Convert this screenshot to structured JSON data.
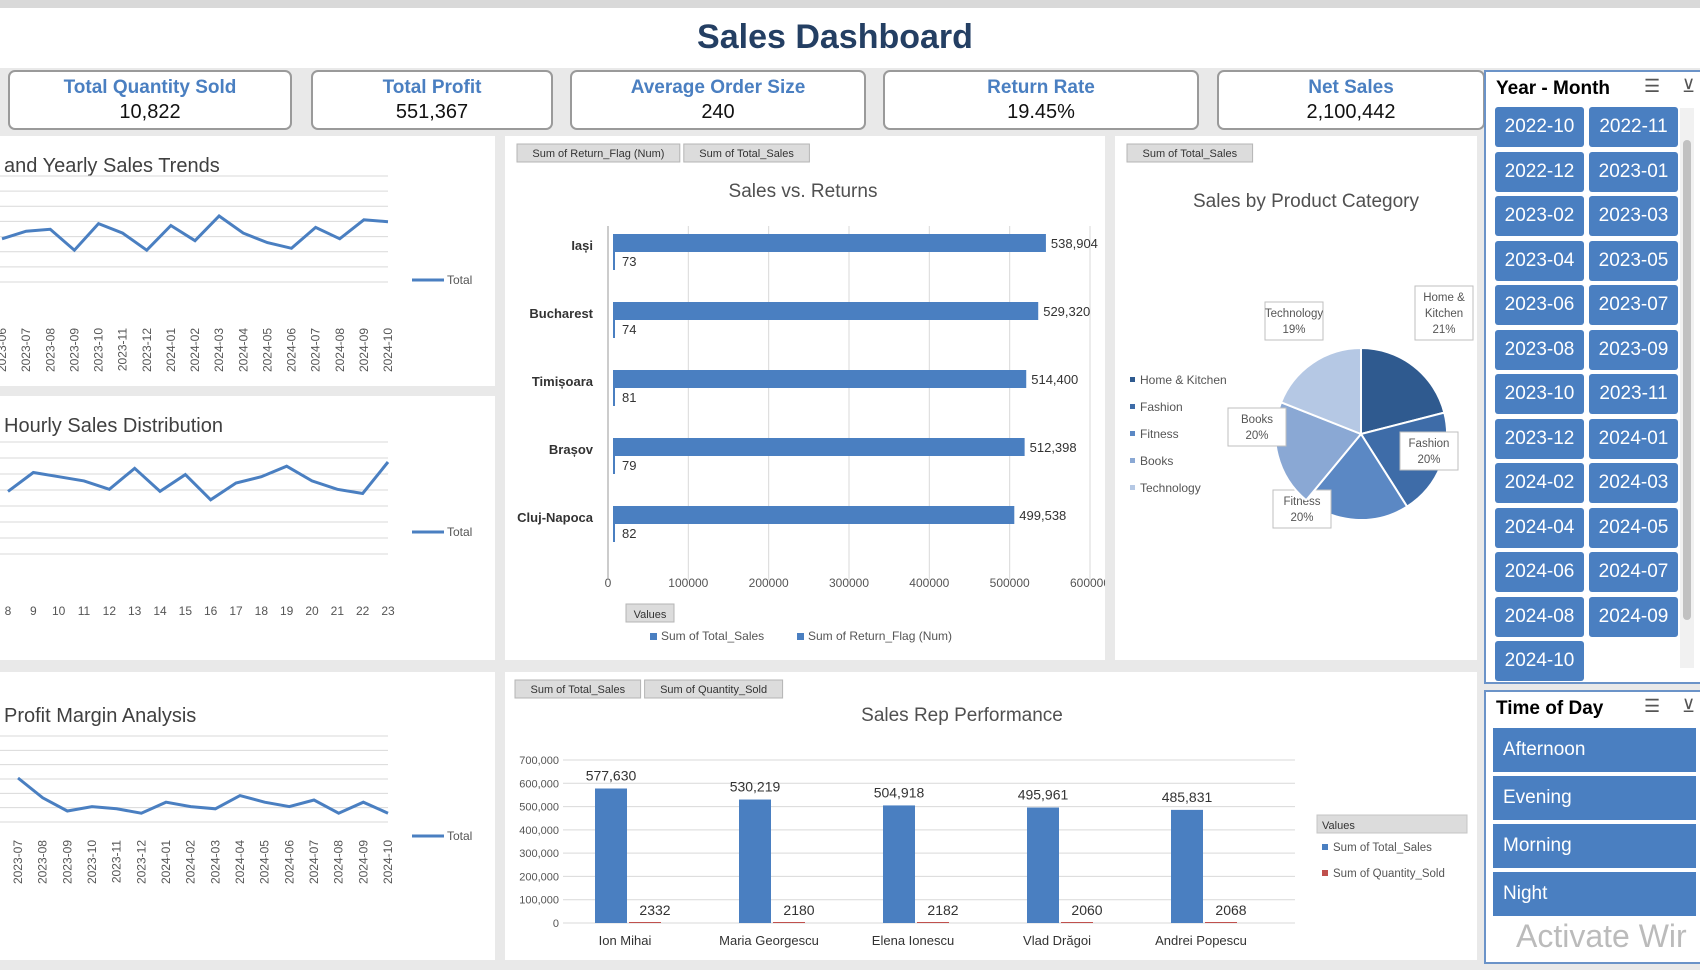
{
  "dashboard": {
    "title": "Sales Dashboard"
  },
  "kpis": [
    {
      "label": "Total Quantity Sold",
      "value": "10,822"
    },
    {
      "label": "Total Profit",
      "value": "551,367"
    },
    {
      "label": "Average Order Size",
      "value": "240"
    },
    {
      "label": "Return Rate",
      "value": "19.45%"
    },
    {
      "label": "Net Sales",
      "value": "2,100,442"
    }
  ],
  "slicer_month": {
    "title": "Year - Month",
    "items": [
      "2022-10",
      "2022-11",
      "2022-12",
      "2023-01",
      "2023-02",
      "2023-03",
      "2023-04",
      "2023-05",
      "2023-06",
      "2023-07",
      "2023-08",
      "2023-09",
      "2023-10",
      "2023-11",
      "2023-12",
      "2024-01",
      "2024-02",
      "2024-03",
      "2024-04",
      "2024-05",
      "2024-06",
      "2024-07",
      "2024-08",
      "2024-09",
      "2024-10"
    ]
  },
  "slicer_time": {
    "title": "Time of Day",
    "items": [
      "Afternoon",
      "Evening",
      "Morning",
      "Night"
    ]
  },
  "watermark": "Activate Wir",
  "chart_data": [
    {
      "id": "monthly-trend",
      "type": "line",
      "title": "and Yearly Sales Trends",
      "x": [
        "2023-06",
        "2023-07",
        "2023-08",
        "2023-09",
        "2023-10",
        "2023-11",
        "2023-12",
        "2024-01",
        "2024-02",
        "2024-03",
        "2024-04",
        "2024-05",
        "2024-06",
        "2024-07",
        "2024-08",
        "2024-09",
        "2024-10"
      ],
      "series": [
        {
          "name": "Total",
          "values": [
            88,
            92,
            93,
            82,
            96,
            91,
            82,
            95,
            87,
            100,
            91,
            86,
            83,
            94,
            88,
            98,
            97
          ]
        }
      ],
      "legend": "right",
      "grid": true
    },
    {
      "id": "hourly-distribution",
      "type": "line",
      "title": "Hourly Sales Distribution",
      "x": [
        "8",
        "9",
        "10",
        "11",
        "12",
        "13",
        "14",
        "15",
        "16",
        "17",
        "18",
        "19",
        "20",
        "21",
        "22",
        "23"
      ],
      "series": [
        {
          "name": "Total",
          "values": [
            86,
            95,
            93,
            91,
            87,
            97,
            86,
            94,
            82,
            90,
            93,
            98,
            91,
            87,
            85,
            100
          ]
        }
      ],
      "legend": "right",
      "grid": true
    },
    {
      "id": "sales-vs-returns",
      "type": "bar",
      "orientation": "horizontal",
      "title": "Sales vs. Returns",
      "field_buttons": [
        "Sum of Return_Flag (Num)",
        "Sum of Total_Sales"
      ],
      "values_button": "Values",
      "categories": [
        "Iași",
        "Bucharest",
        "Timișoara",
        "Brașov",
        "Cluj-Napoca"
      ],
      "series": [
        {
          "name": "Sum of Total_Sales",
          "values": [
            538904,
            529320,
            514400,
            512398,
            499538
          ],
          "labels": [
            "538,904",
            "529,320",
            "514,400",
            "512,398",
            "499,538"
          ]
        },
        {
          "name": "Sum of Return_Flag (Num)",
          "values": [
            73,
            74,
            81,
            79,
            82
          ],
          "labels": [
            "73",
            "74",
            "81",
            "79",
            "82"
          ]
        }
      ],
      "xlim": [
        0,
        600000
      ],
      "ticks": [
        "0",
        "100000",
        "200000",
        "300000",
        "400000",
        "500000",
        "600000"
      ]
    },
    {
      "id": "sales-by-category",
      "type": "pie",
      "title": "Sales by Product Category",
      "field_buttons": [
        "Sum of Total_Sales"
      ],
      "slices": [
        {
          "name": "Home & Kitchen",
          "value": 21,
          "label": "21%",
          "color": "#2f5a8f"
        },
        {
          "name": "Fashion",
          "value": 20,
          "label": "20%",
          "color": "#3e6ca8"
        },
        {
          "name": "Fitness",
          "value": 20,
          "label": "20%",
          "color": "#5b88c4"
        },
        {
          "name": "Books",
          "value": 20,
          "label": "20%",
          "color": "#8aa8d4"
        },
        {
          "name": "Technology",
          "value": 19,
          "label": "19%",
          "color": "#b5c8e4"
        }
      ],
      "legend": "left"
    },
    {
      "id": "profit-margin",
      "type": "line",
      "title": "Profit Margin Analysis",
      "x": [
        "2023-07",
        "2023-08",
        "2023-09",
        "2023-10",
        "2023-11",
        "2023-12",
        "2024-01",
        "2024-02",
        "2024-03",
        "2024-04",
        "2024-05",
        "2024-06",
        "2024-07",
        "2024-08",
        "2024-09",
        "2024-10"
      ],
      "series": [
        {
          "name": "Total",
          "values": [
            100,
            91,
            85,
            87,
            86,
            84,
            89,
            87,
            86,
            92,
            89,
            87,
            90,
            84,
            89,
            84
          ]
        }
      ],
      "legend": "right",
      "grid": true
    },
    {
      "id": "sales-rep-performance",
      "type": "bar",
      "title": "Sales Rep Performance",
      "field_buttons": [
        "Sum of Total_Sales",
        "Sum of Quantity_Sold"
      ],
      "legend_header": "Values",
      "categories": [
        "Ion Mihai",
        "Maria Georgescu",
        "Elena Ionescu",
        "Vlad Drăgoi",
        "Andrei Popescu"
      ],
      "series": [
        {
          "name": "Sum of Total_Sales",
          "values": [
            577630,
            530219,
            504918,
            495961,
            485831
          ],
          "labels": [
            "577,630",
            "530,219",
            "504,918",
            "495,961",
            "485,831"
          ],
          "color": "#4a7fc1"
        },
        {
          "name": "Sum of Quantity_Sold",
          "values": [
            2332,
            2180,
            2182,
            2060,
            2068
          ],
          "labels": [
            "2332",
            "2180",
            "2182",
            "2060",
            "2068"
          ],
          "color": "#c0504d"
        }
      ],
      "ylim": [
        0,
        700000
      ],
      "ticks": [
        "0",
        "100,000",
        "200,000",
        "300,000",
        "400,000",
        "500,000",
        "600,000",
        "700,000"
      ]
    }
  ]
}
